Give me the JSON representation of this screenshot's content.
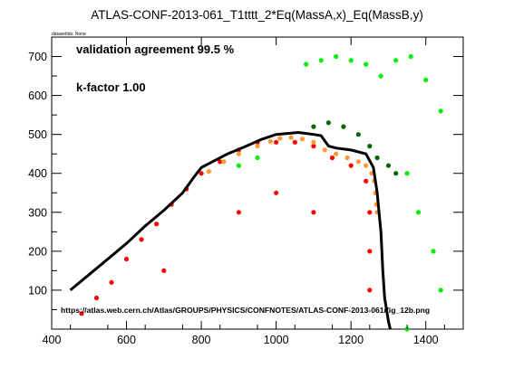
{
  "chart_data": {
    "type": "scatter",
    "title": "ATLAS-CONF-2013-061_T1tttt_2*Eq(MassA,x)_Eq(MassB,y)",
    "subtitle": "datasetIds: None",
    "xlabel": "",
    "ylabel": "",
    "xlim": [
      400,
      1500
    ],
    "ylim": [
      0,
      750
    ],
    "x_ticks": [
      "400",
      "600",
      "800",
      "1000",
      "1200",
      "1400"
    ],
    "y_ticks": [
      "100",
      "200",
      "300",
      "400",
      "500",
      "600",
      "700"
    ],
    "annotations": [
      "validation agreement 99.5 %",
      "k-factor 1.00"
    ],
    "source_text": "https://atlas.web.cern.ch/Atlas/GROUPS/PHYSICS/CONFNOTES/ATLAS-CONF-2013-061/fig_12b.png",
    "grid": false,
    "legend": "none",
    "colors": {
      "excluded_agree": "#ff0000",
      "excluded_disagree": "#ff9933",
      "allowed_agree": "#00ee00",
      "allowed_disagree": "#006600",
      "official_contour": "#000000"
    },
    "exclusion_contour": [
      [
        450,
        100
      ],
      [
        500,
        140
      ],
      [
        600,
        220
      ],
      [
        650,
        265
      ],
      [
        700,
        305
      ],
      [
        750,
        350
      ],
      [
        780,
        390
      ],
      [
        800,
        415
      ],
      [
        830,
        430
      ],
      [
        870,
        450
      ],
      [
        920,
        470
      ],
      [
        960,
        487
      ],
      [
        1000,
        500
      ],
      [
        1060,
        505
      ],
      [
        1100,
        500
      ],
      [
        1120,
        497
      ],
      [
        1140,
        470
      ],
      [
        1160,
        465
      ],
      [
        1200,
        460
      ],
      [
        1240,
        450
      ],
      [
        1260,
        415
      ],
      [
        1270,
        350
      ],
      [
        1275,
        300
      ],
      [
        1280,
        250
      ],
      [
        1285,
        150
      ],
      [
        1290,
        80
      ],
      [
        1300,
        20
      ],
      [
        1305,
        0
      ]
    ],
    "series": [
      {
        "color_key": "excluded_agree",
        "points": [
          [
            480,
            40
          ],
          [
            520,
            80
          ],
          [
            560,
            120
          ],
          [
            600,
            180
          ],
          [
            640,
            230
          ],
          [
            680,
            270
          ],
          [
            720,
            320
          ],
          [
            760,
            360
          ],
          [
            800,
            400
          ],
          [
            850,
            430
          ],
          [
            900,
            460
          ],
          [
            950,
            480
          ],
          [
            1000,
            480
          ],
          [
            1050,
            480
          ],
          [
            1100,
            470
          ],
          [
            1150,
            440
          ],
          [
            1200,
            420
          ],
          [
            1240,
            380
          ],
          [
            1250,
            300
          ],
          [
            1250,
            200
          ],
          [
            1250,
            100
          ],
          [
            700,
            150
          ],
          [
            900,
            300
          ],
          [
            1000,
            350
          ],
          [
            1100,
            300
          ]
        ]
      },
      {
        "color_key": "excluded_disagree",
        "points": [
          [
            1010,
            490
          ],
          [
            1040,
            492
          ],
          [
            1070,
            488
          ],
          [
            1100,
            480
          ],
          [
            1130,
            460
          ],
          [
            1160,
            450
          ],
          [
            1190,
            440
          ],
          [
            1220,
            430
          ],
          [
            1240,
            420
          ],
          [
            1255,
            400
          ],
          [
            1262,
            380
          ],
          [
            1265,
            350
          ],
          [
            1268,
            320
          ],
          [
            1270,
            300
          ],
          [
            820,
            405
          ],
          [
            860,
            430
          ],
          [
            900,
            450
          ],
          [
            950,
            470
          ],
          [
            985,
            482
          ]
        ]
      },
      {
        "color_key": "allowed_agree",
        "points": [
          [
            1080,
            680
          ],
          [
            1120,
            690
          ],
          [
            1160,
            700
          ],
          [
            1200,
            690
          ],
          [
            1240,
            680
          ],
          [
            1280,
            650
          ],
          [
            1320,
            690
          ],
          [
            1360,
            700
          ],
          [
            1400,
            640
          ],
          [
            1440,
            560
          ],
          [
            1350,
            400
          ],
          [
            1380,
            300
          ],
          [
            1420,
            200
          ],
          [
            1440,
            100
          ],
          [
            1350,
            0
          ],
          [
            900,
            420
          ],
          [
            950,
            440
          ]
        ]
      },
      {
        "color_key": "allowed_disagree",
        "points": [
          [
            1100,
            520
          ],
          [
            1140,
            530
          ],
          [
            1180,
            520
          ],
          [
            1220,
            500
          ],
          [
            1250,
            470
          ],
          [
            1270,
            440
          ],
          [
            1300,
            420
          ],
          [
            1320,
            400
          ]
        ]
      }
    ]
  }
}
